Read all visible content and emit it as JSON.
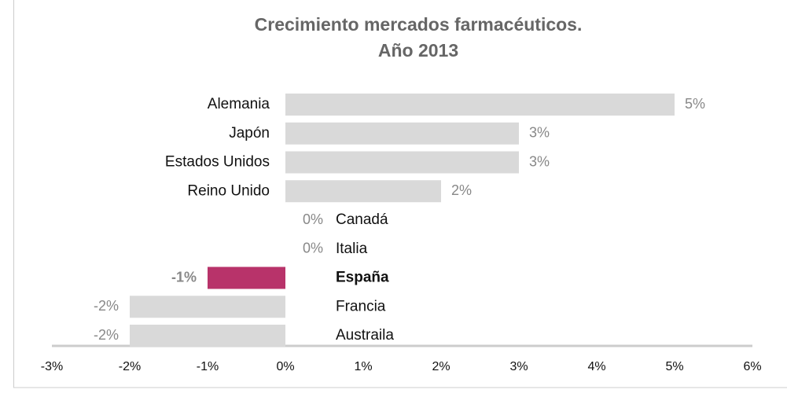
{
  "chart_data": {
    "type": "barh",
    "title": [
      "Crecimiento mercados farmacéuticos.",
      "Año 2013"
    ],
    "categories": [
      "Alemania",
      "Japón",
      "Estados Unidos",
      "Reino Unido",
      "Canadá",
      "Italia",
      "España",
      "Francia",
      "Austraila"
    ],
    "values": [
      5,
      3,
      3,
      2,
      0,
      0,
      -1,
      -2,
      -2
    ],
    "value_labels": [
      "5%",
      "3%",
      "3%",
      "2%",
      "0%",
      "0%",
      "-1%",
      "-2%",
      "-2%"
    ],
    "color": "#d9d9d9",
    "colors": [
      "#d9d9d9",
      "#d9d9d9",
      "#d9d9d9",
      "#d9d9d9",
      "#d9d9d9",
      "#d9d9d9",
      "#b8336a",
      "#d9d9d9",
      "#d9d9d9"
    ],
    "xlim": [
      -3,
      6
    ],
    "xticks": [
      {
        "value": -3,
        "label": "-3%"
      },
      {
        "value": -2,
        "label": "-2%"
      },
      {
        "value": -1,
        "label": "-1%"
      },
      {
        "value": 0,
        "label": "0%"
      },
      {
        "value": 1,
        "label": "1%"
      },
      {
        "value": 2,
        "label": "2%"
      },
      {
        "value": 3,
        "label": "3%"
      },
      {
        "value": 4,
        "label": "4%"
      },
      {
        "value": 5,
        "label": "5%"
      },
      {
        "value": 6,
        "label": "6%"
      }
    ]
  }
}
